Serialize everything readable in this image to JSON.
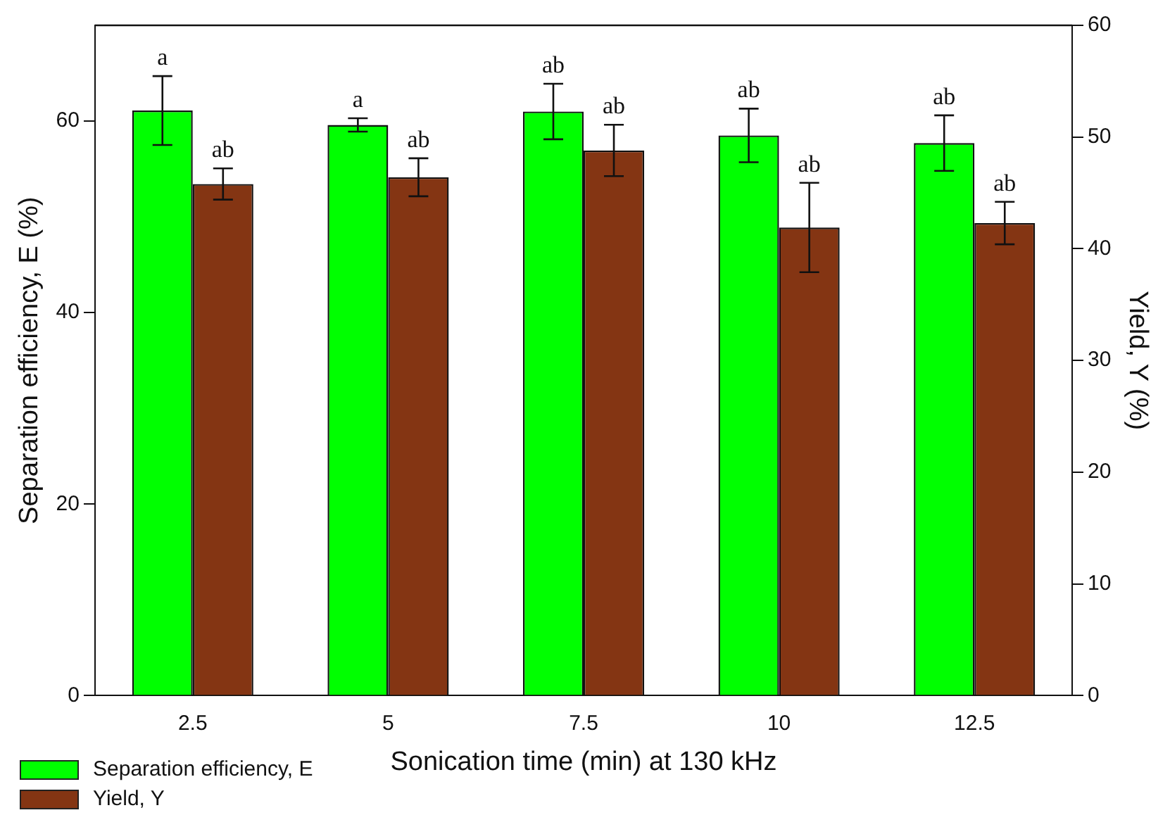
{
  "chart_data": {
    "type": "bar",
    "xlabel": "Sonication time (min) at 130 kHz",
    "ylabel": "Separation efficiency, E (%)",
    "y2label": "Yield, Y (%)",
    "categories": [
      "2.5",
      "5",
      "7.5",
      "10",
      "12.5"
    ],
    "series": [
      {
        "name": "Separation efficiency, E",
        "color": "#00ff00",
        "values": [
          61.1,
          59.6,
          61.0,
          58.5,
          57.7
        ],
        "errors": [
          3.6,
          0.7,
          2.9,
          2.8,
          2.9
        ],
        "value_labels": [
          "a",
          "a",
          "ab",
          "ab",
          "ab"
        ]
      },
      {
        "name": "Yield, Y",
        "color": "#843513",
        "axis": "y2",
        "values": [
          45.8,
          46.4,
          48.8,
          41.9,
          42.3
        ],
        "errors": [
          1.4,
          1.7,
          2.3,
          4.0,
          1.9
        ],
        "value_labels": [
          "ab",
          "ab",
          "ab",
          "ab",
          "ab"
        ]
      }
    ],
    "ylim": [
      0,
      70
    ],
    "yticks": [
      0,
      20,
      40,
      60
    ],
    "y2lim": [
      0,
      60
    ],
    "y2ticks": [
      0,
      10,
      20,
      30,
      40,
      50,
      60
    ],
    "grid": false,
    "legend": "bottom left"
  }
}
